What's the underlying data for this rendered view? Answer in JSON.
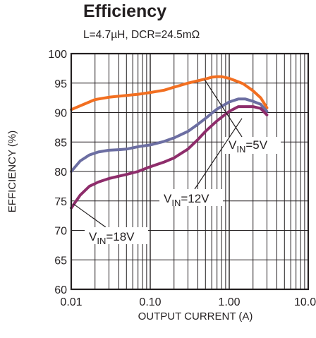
{
  "chart_data": {
    "type": "line",
    "title": "Efficiency",
    "subtitle": "L=4.7µH, DCR=24.5mΩ",
    "xlabel": "OUTPUT CURRENT (A)",
    "ylabel": "EFFICIENCY (%)",
    "x_scale": "log",
    "xlim": [
      0.01,
      10
    ],
    "ylim": [
      60,
      100
    ],
    "x_ticks": [
      0.01,
      0.1,
      1,
      10
    ],
    "x_tick_labels": [
      "0.01",
      "0.10",
      "1.00",
      "10.00"
    ],
    "y_ticks": [
      60,
      65,
      70,
      75,
      80,
      85,
      90,
      95,
      100
    ],
    "y_tick_labels": [
      "60",
      "65",
      "70",
      "75",
      "80",
      "85",
      "90",
      "95",
      "100"
    ],
    "grid": true,
    "series": [
      {
        "name": "VIN=5V",
        "label_main": "V",
        "label_sub": "IN",
        "label_rest": "=5V",
        "color": "#f26f21",
        "x": [
          0.01,
          0.015,
          0.02,
          0.03,
          0.05,
          0.07,
          0.1,
          0.15,
          0.2,
          0.3,
          0.4,
          0.5,
          0.6,
          0.7,
          0.8,
          1.0,
          1.2,
          1.5,
          2.0,
          2.5,
          3.0
        ],
        "y": [
          90.5,
          91.5,
          92.2,
          92.6,
          92.9,
          93.1,
          93.4,
          93.8,
          94.3,
          95.0,
          95.4,
          95.7,
          96.0,
          96.1,
          96.1,
          95.8,
          95.4,
          94.9,
          93.7,
          92.5,
          90.8
        ]
      },
      {
        "name": "VIN=12V",
        "label_main": "V",
        "label_sub": "IN",
        "label_rest": "=12V",
        "color": "#6c6ea2",
        "x": [
          0.01,
          0.013,
          0.017,
          0.022,
          0.03,
          0.04,
          0.05,
          0.07,
          0.1,
          0.15,
          0.2,
          0.3,
          0.4,
          0.5,
          0.7,
          1.0,
          1.3,
          1.6,
          2.0,
          2.5,
          3.0
        ],
        "y": [
          80.0,
          81.8,
          82.8,
          83.3,
          83.6,
          83.7,
          83.8,
          84.2,
          84.5,
          85.1,
          85.7,
          86.8,
          88.0,
          89.0,
          90.6,
          91.8,
          92.3,
          92.3,
          91.9,
          91.4,
          90.2
        ]
      },
      {
        "name": "VIN=18V",
        "label_main": "V",
        "label_sub": "IN",
        "label_rest": "=18V",
        "color": "#8e2d6b",
        "x": [
          0.01,
          0.013,
          0.017,
          0.022,
          0.03,
          0.04,
          0.05,
          0.07,
          0.1,
          0.15,
          0.2,
          0.3,
          0.4,
          0.5,
          0.7,
          1.0,
          1.3,
          1.6,
          2.0,
          2.5,
          3.0
        ],
        "y": [
          73.8,
          76.0,
          77.5,
          78.2,
          78.8,
          79.2,
          79.5,
          80.0,
          80.8,
          81.6,
          82.3,
          83.8,
          85.4,
          86.8,
          88.6,
          90.2,
          91.0,
          91.0,
          91.0,
          90.7,
          89.6
        ]
      }
    ]
  }
}
